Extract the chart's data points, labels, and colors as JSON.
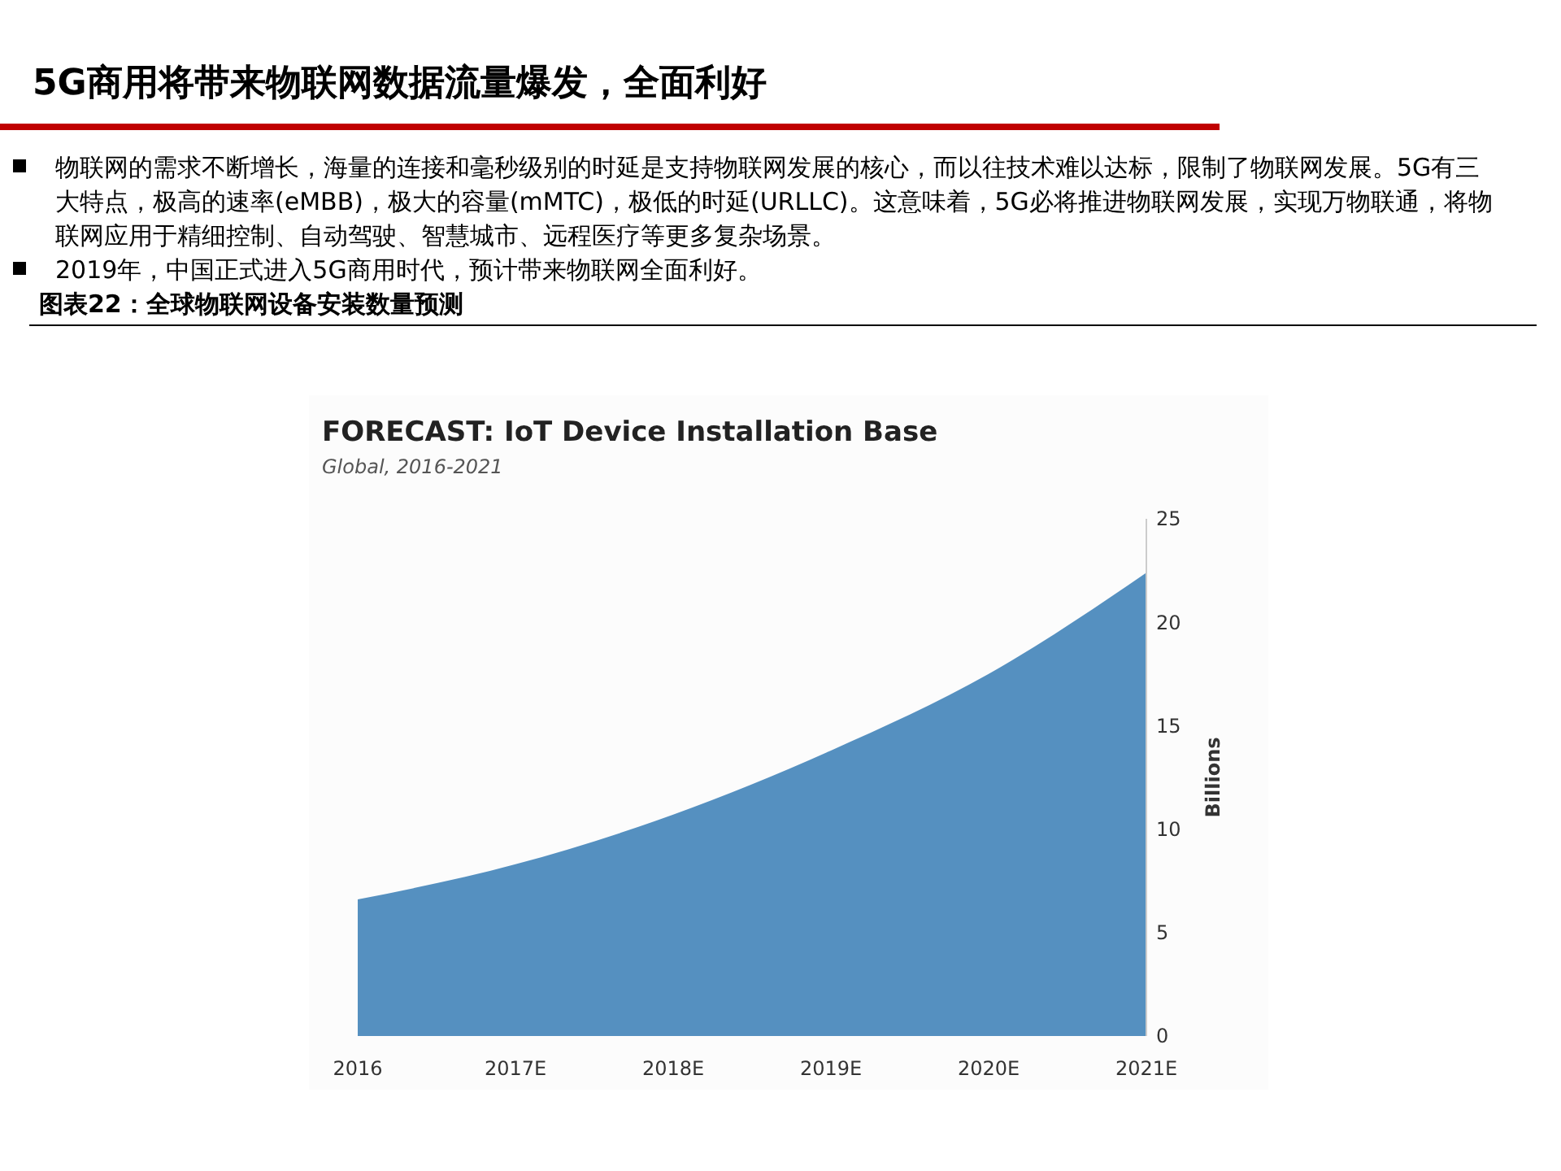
{
  "chart_data": {
    "type": "area",
    "title": "FORECAST: IoT Device Installation Base",
    "subtitle": "Global, 2016-2021",
    "ylabel": "Billions",
    "categories": [
      "2016",
      "2017E",
      "2018E",
      "2019E",
      "2020E",
      "2021E"
    ],
    "values": [
      6.6,
      8.3,
      10.7,
      13.8,
      17.5,
      22.4
    ],
    "color": "#5590c0",
    "ylim": [
      0,
      25
    ],
    "yticks": [
      0,
      5,
      10,
      15,
      20,
      25
    ],
    "grid": false,
    "annotations": [
      "5G商用将带来物联网数据流量爆发，全面利好",
      "物联网的需求不断增长，海量的连接和毫秒级别的时延是支持物联网发展的核心，而以往技术难以达标，限制了物联网发展。5G有三大特点，极高的速率(eMBB)，极大的容量(mMTC)，极低的时延(URLLC)。这意味着，5G必将推进物联网发展，实现万物联通，将物联网应用于精细控制、自动驾驶、智慧城市、远程医疗等更多复杂场景。",
      "2019年，中国正式进入5G商用时代，预计带来物联网全面利好。",
      "图表22：全球物联网设备安装数量预测"
    ]
  }
}
